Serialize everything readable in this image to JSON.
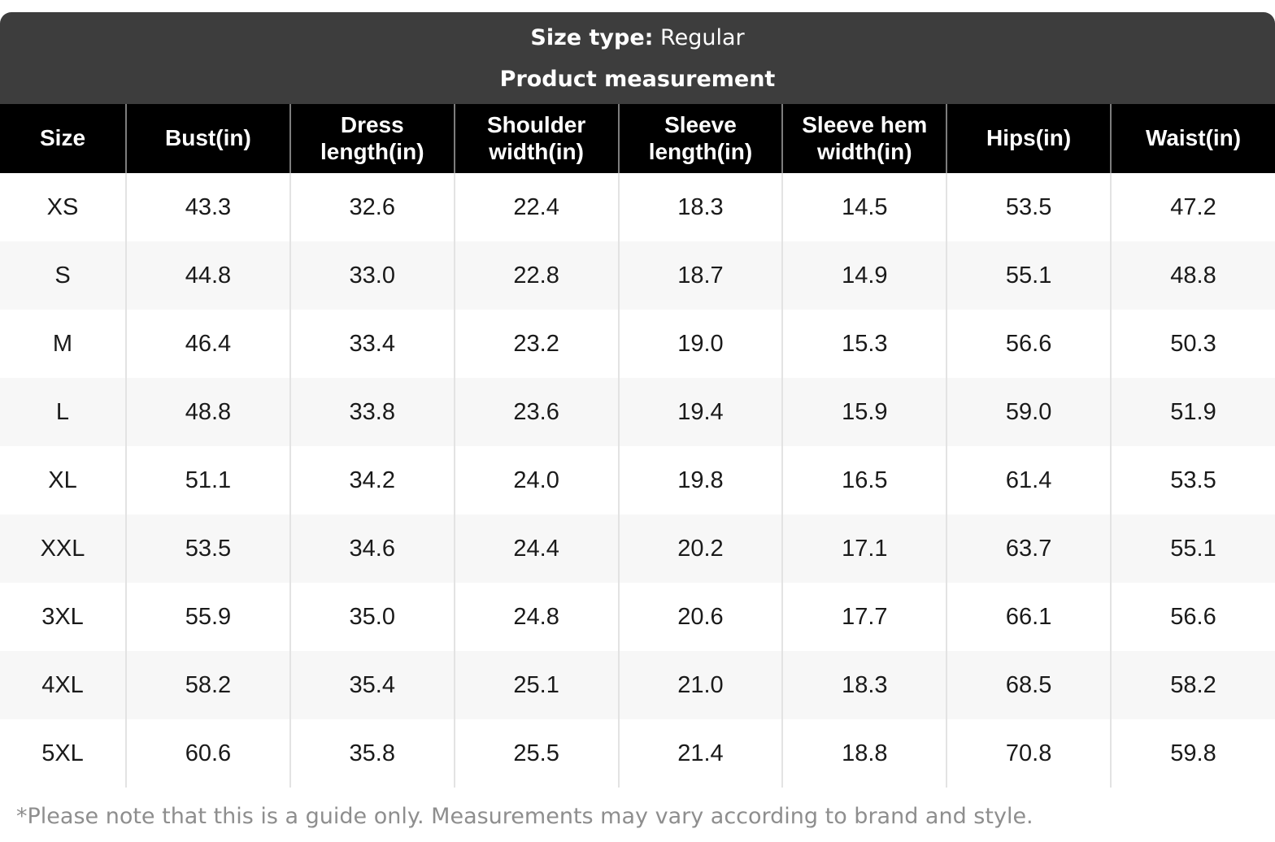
{
  "header": {
    "size_type_label": "Size type:",
    "size_type_value": "Regular",
    "title": "Product measurement"
  },
  "chart_data": {
    "type": "table",
    "title": "Product measurement",
    "columns": [
      "Size",
      "Bust(in)",
      "Dress length(in)",
      "Shoulder width(in)",
      "Sleeve length(in)",
      "Sleeve hem width(in)",
      "Hips(in)",
      "Waist(in)"
    ],
    "rows": [
      {
        "size": "XS",
        "values": [
          "43.3",
          "32.6",
          "22.4",
          "18.3",
          "14.5",
          "53.5",
          "47.2"
        ]
      },
      {
        "size": "S",
        "values": [
          "44.8",
          "33.0",
          "22.8",
          "18.7",
          "14.9",
          "55.1",
          "48.8"
        ]
      },
      {
        "size": "M",
        "values": [
          "46.4",
          "33.4",
          "23.2",
          "19.0",
          "15.3",
          "56.6",
          "50.3"
        ]
      },
      {
        "size": "L",
        "values": [
          "48.8",
          "33.8",
          "23.6",
          "19.4",
          "15.9",
          "59.0",
          "51.9"
        ]
      },
      {
        "size": "XL",
        "values": [
          "51.1",
          "34.2",
          "24.0",
          "19.8",
          "16.5",
          "61.4",
          "53.5"
        ]
      },
      {
        "size": "XXL",
        "values": [
          "53.5",
          "34.6",
          "24.4",
          "20.2",
          "17.1",
          "63.7",
          "55.1"
        ]
      },
      {
        "size": "3XL",
        "values": [
          "55.9",
          "35.0",
          "24.8",
          "20.6",
          "17.7",
          "66.1",
          "56.6"
        ]
      },
      {
        "size": "4XL",
        "values": [
          "58.2",
          "35.4",
          "25.1",
          "21.0",
          "18.3",
          "68.5",
          "58.2"
        ]
      },
      {
        "size": "5XL",
        "values": [
          "60.6",
          "35.8",
          "25.5",
          "21.4",
          "18.8",
          "70.8",
          "59.8"
        ]
      }
    ]
  },
  "footnote": "*Please note that this is a guide only. Measurements may vary according to brand and style.",
  "colors": {
    "header_bg": "#3d3d3d",
    "table_head_bg": "#000000",
    "stripe_bg": "#f7f7f7",
    "body_separator": "#e3e3e3",
    "head_separator": "#7d7d7d",
    "text_color": "#1a1a1a",
    "footnote_color": "#8e8e8e"
  }
}
